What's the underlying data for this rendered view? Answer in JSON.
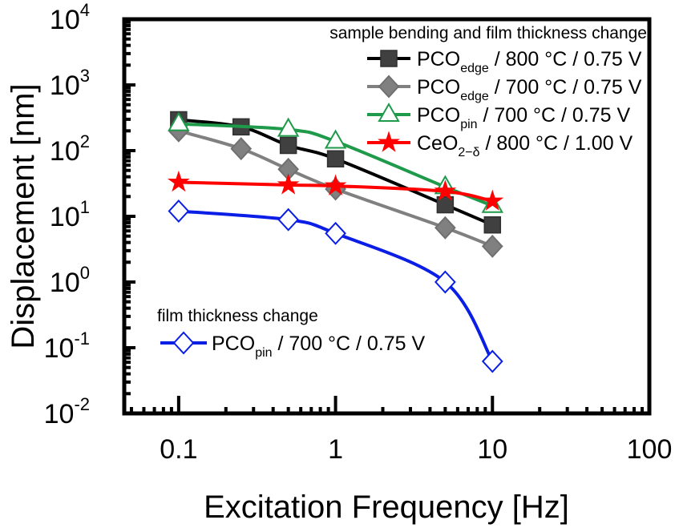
{
  "chart_data": {
    "type": "line",
    "xlabel": "Excitation Frequency [Hz]",
    "ylabel": "Displacement [nm]",
    "x_scale": "log",
    "y_scale": "log",
    "xlim": [
      0.045,
      100
    ],
    "ylim": [
      0.01,
      10000
    ],
    "x_ticks": [
      {
        "value": 0.1,
        "label": "0.1"
      },
      {
        "value": 1,
        "label": "1"
      },
      {
        "value": 10,
        "label": "10"
      },
      {
        "value": 100,
        "label": "100"
      }
    ],
    "y_ticks": [
      {
        "value": 0.01,
        "base": "10",
        "exp": "-2"
      },
      {
        "value": 0.1,
        "base": "10",
        "exp": "-1"
      },
      {
        "value": 1,
        "base": "10",
        "exp": "0"
      },
      {
        "value": 10,
        "base": "10",
        "exp": "1"
      },
      {
        "value": 100,
        "base": "10",
        "exp": "2"
      },
      {
        "value": 1000,
        "base": "10",
        "exp": "3"
      },
      {
        "value": 10000,
        "base": "10",
        "exp": "4"
      }
    ],
    "grid": false,
    "legend_groups": [
      {
        "title": "sample bending and film thickness change",
        "placement": "top-right"
      },
      {
        "title": "film thickness change",
        "placement": "bottom-left"
      }
    ],
    "series": [
      {
        "name_main": "PCO",
        "name_sub": "edge",
        "name_rest": " / 800 °C / 0.75 V",
        "group": 0,
        "color": "#000000",
        "marker": "square",
        "marker_fill": "#404040",
        "marker_stroke": "#303030",
        "x": [
          0.1,
          0.25,
          0.5,
          1,
          5,
          10
        ],
        "y": [
          295,
          230,
          120,
          75,
          15,
          7.4
        ]
      },
      {
        "name_main": "PCO",
        "name_sub": "edge",
        "name_rest": " / 700 °C / 0.75 V",
        "group": 0,
        "color": "#808080",
        "marker": "diamond",
        "marker_fill": "#808080",
        "marker_stroke": "#707070",
        "x": [
          0.1,
          0.25,
          0.5,
          1,
          5,
          10
        ],
        "y": [
          200,
          107,
          52,
          26,
          6.7,
          3.5
        ]
      },
      {
        "name_main": "PCO",
        "name_sub": "pin",
        "name_rest": "   / 700 °C / 0.75 V",
        "group": 0,
        "color": "#1e9a4a",
        "marker": "triangle",
        "marker_fill": "#ffffff",
        "marker_stroke": "#1e9a4a",
        "x": [
          0.1,
          0.5,
          1,
          5,
          10
        ],
        "y": [
          255,
          210,
          138,
          28,
          14.5
        ]
      },
      {
        "name_main": "CeO",
        "name_sub": "2−δ",
        "name_rest": "   / 800 °C / 1.00 V",
        "group": 0,
        "color": "#ff0000",
        "marker": "star",
        "marker_fill": "#ff0000",
        "marker_stroke": "#ff0000",
        "x": [
          0.1,
          0.5,
          1,
          5,
          10
        ],
        "y": [
          33,
          30,
          29,
          24,
          17
        ]
      },
      {
        "name_main": "PCO",
        "name_sub": "pin",
        "name_rest": " / 700 °C / 0.75 V",
        "group": 1,
        "color": "#0a1ee6",
        "marker": "diamond",
        "marker_fill": "#ffffff",
        "marker_stroke": "#0a1ee6",
        "x": [
          0.1,
          0.5,
          1,
          5,
          10
        ],
        "y": [
          12,
          8.9,
          5.5,
          1.0,
          0.062
        ]
      }
    ]
  }
}
